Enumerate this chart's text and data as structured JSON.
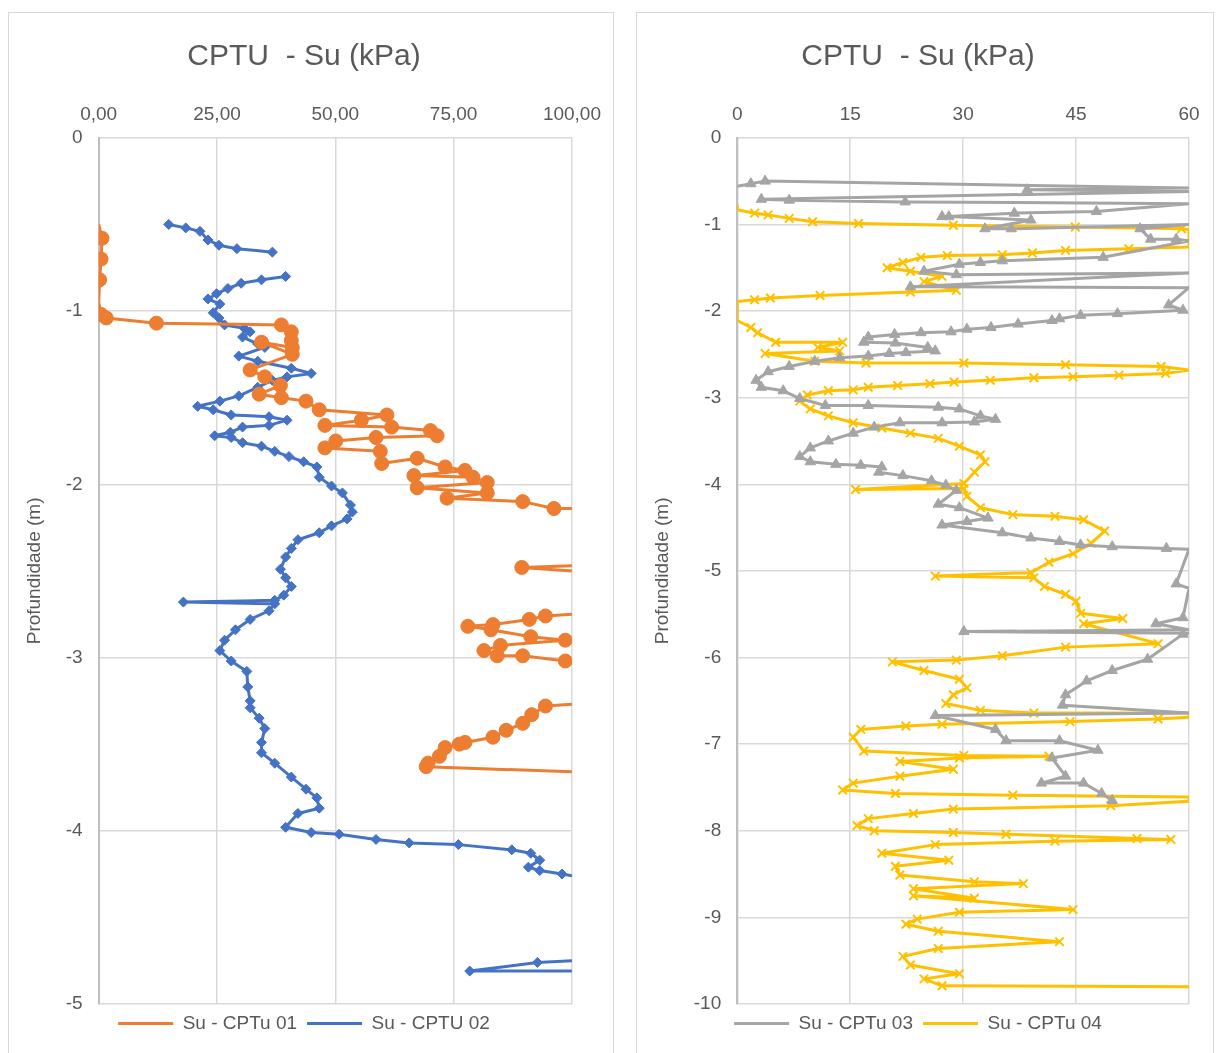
{
  "chart_data": [
    {
      "type": "line",
      "title": "CPTU  - Su (kPa)",
      "ylabel": "Profundidade (m)",
      "xlim": [
        0,
        100
      ],
      "xticks": [
        {
          "value": 0,
          "label": "0,00"
        },
        {
          "value": 25,
          "label": "25,00"
        },
        {
          "value": 50,
          "label": "50,00"
        },
        {
          "value": 75,
          "label": "75,00"
        },
        {
          "value": 100,
          "label": "100,00"
        }
      ],
      "ylim": [
        -5,
        0
      ],
      "yticks": [
        0,
        -1,
        -2,
        -3,
        -4,
        -5
      ],
      "grid": true,
      "legend": "bottom",
      "series": [
        {
          "name": "Su - CPTu 01",
          "color": "#ed7d31",
          "marker": "circle",
          "x": [
            0,
            0.7,
            0.5,
            0.2,
            0,
            0.5,
            1.6,
            12.2,
            38.6,
            40.7,
            40.7,
            40.9,
            34.4,
            40.9,
            32.0,
            35.1,
            38.4,
            33.9,
            38.6,
            43.8,
            46.6,
            60.9,
            55.5,
            47.8,
            61.9,
            70.1,
            71.5,
            58.6,
            50.1,
            47.8,
            59.5,
            59.8,
            67.3,
            73.2,
            77.4,
            66.6,
            79.1,
            82.1,
            67.3,
            82.1,
            73.6,
            89.6,
            96.2,
            100,
            null,
            100,
            89.4,
            100,
            null,
            100,
            94.4,
            91.0,
            83.3,
            78.0,
            82.9,
            91.3,
            98.6,
            84.9,
            81.4,
            84.2,
            89.6,
            98.6,
            100,
            null,
            100,
            94.4,
            91.5,
            89.6,
            86.1,
            83.3,
            77.4,
            76.2,
            73.2,
            72.0,
            69.6,
            69.2,
            100
          ],
          "values": [
            -0.5,
            -0.58,
            -0.7,
            -0.82,
            -0.95,
            -1.02,
            -1.04,
            -1.07,
            -1.08,
            -1.12,
            -1.17,
            -1.21,
            -1.18,
            -1.25,
            -1.34,
            -1.38,
            -1.43,
            -1.48,
            -1.5,
            -1.52,
            -1.57,
            -1.6,
            -1.63,
            -1.66,
            -1.67,
            -1.69,
            -1.72,
            -1.73,
            -1.75,
            -1.79,
            -1.81,
            -1.88,
            -1.85,
            -1.9,
            -1.92,
            -1.95,
            -1.96,
            -1.99,
            -2.02,
            -2.05,
            -2.08,
            -2.1,
            -2.14,
            -2.14,
            null,
            -2.47,
            -2.48,
            -2.5,
            null,
            -2.75,
            -2.76,
            -2.78,
            -2.81,
            -2.82,
            -2.84,
            -2.88,
            -2.9,
            -2.93,
            -2.96,
            -2.99,
            -2.99,
            -3.02,
            -3.03,
            null,
            -3.27,
            -3.28,
            -3.33,
            -3.38,
            -3.42,
            -3.46,
            -3.49,
            -3.5,
            -3.52,
            -3.57,
            -3.61,
            -3.63,
            -3.66
          ]
        },
        {
          "name": "Su - CPTU 02",
          "color": "#4472c4",
          "marker": "diamond",
          "x": [
            14.8,
            18.4,
            21.4,
            23.1,
            25.4,
            29.2,
            36.7,
            null,
            39.5,
            34.4,
            30.1,
            27.3,
            24.9,
            23.1,
            25.6,
            24.2,
            25.4,
            26.6,
            30.8,
            32.0,
            30.4,
            33.6,
            35.1,
            29.6,
            33.6,
            40.7,
            44.9,
            39.8,
            36.7,
            33.6,
            29.6,
            25.6,
            20.9,
            24.2,
            28.0,
            36.0,
            39.8,
            36.0,
            30.4,
            27.8,
            24.5,
            28.0,
            30.4,
            34.4,
            37.2,
            40.2,
            43.3,
            46.1,
            46.6,
            49.2,
            51.5,
            53.2,
            53.6,
            52.5,
            49.2,
            46.6,
            42.1,
            40.7,
            39.5,
            38.4,
            39.5,
            40.7,
            39.1,
            37.2,
            17.9,
            37.2,
            36.0,
            32.0,
            28.9,
            26.6,
            25.6,
            28.0,
            31.3,
            31.5,
            32.0,
            32.0,
            33.9,
            35.1,
            34.4,
            34.4,
            37.2,
            40.7,
            43.8,
            46.1,
            46.6,
            42.1,
            39.5,
            44.9,
            50.8,
            58.6,
            65.6,
            76.0,
            87.3,
            91.3,
            93.2,
            90.8,
            93.2,
            97.9,
            100,
            null,
            100,
            92.7,
            78.4,
            100
          ],
          "values": [
            -0.5,
            -0.52,
            -0.54,
            -0.59,
            -0.62,
            -0.64,
            -0.66,
            null,
            -0.8,
            -0.82,
            -0.84,
            -0.87,
            -0.9,
            -0.93,
            -0.96,
            -1.01,
            -1.04,
            -1.08,
            -1.1,
            -1.12,
            -1.15,
            -1.19,
            -1.21,
            -1.26,
            -1.29,
            -1.33,
            -1.36,
            -1.38,
            -1.4,
            -1.44,
            -1.49,
            -1.52,
            -1.55,
            -1.57,
            -1.6,
            -1.61,
            -1.63,
            -1.66,
            -1.67,
            -1.7,
            -1.72,
            -1.73,
            -1.76,
            -1.78,
            -1.81,
            -1.84,
            -1.87,
            -1.9,
            -1.96,
            -2.01,
            -2.05,
            -2.12,
            -2.16,
            -2.2,
            -2.24,
            -2.28,
            -2.32,
            -2.37,
            -2.42,
            -2.49,
            -2.54,
            -2.59,
            -2.64,
            -2.67,
            -2.68,
            -2.69,
            -2.73,
            -2.78,
            -2.84,
            -2.9,
            -2.96,
            -3.02,
            -3.08,
            -3.17,
            -3.25,
            -3.29,
            -3.35,
            -3.41,
            -3.49,
            -3.55,
            -3.61,
            -3.69,
            -3.76,
            -3.81,
            -3.87,
            -3.9,
            -3.98,
            -4.01,
            -4.02,
            -4.05,
            -4.07,
            -4.08,
            -4.11,
            -4.13,
            -4.17,
            -4.21,
            -4.23,
            -4.25,
            -4.26,
            null,
            -4.75,
            -4.76,
            -4.81,
            -4.81
          ]
        }
      ]
    },
    {
      "type": "line",
      "title": "CPTU  - Su (kPa)",
      "ylabel": "Profundidade (m)",
      "xlim": [
        0,
        60
      ],
      "xticks": [
        0,
        15,
        30,
        45,
        60
      ],
      "ylim": [
        -10,
        0
      ],
      "yticks": [
        0,
        -1,
        -2,
        -3,
        -4,
        -5,
        -6,
        -7,
        -8,
        -9,
        -10
      ],
      "grid": true,
      "legend": "bottom",
      "series": [
        {
          "name": "Su - CPTu 03",
          "color": "#a5a5a5",
          "marker": "triangle",
          "x": [
            0,
            1.8,
            3.7,
            60,
            38.5,
            60,
            3.2,
            6.9,
            22.3,
            60,
            47.7,
            36.8,
            27.2,
            28.1,
            39.0,
            32.9,
            36.4,
            60,
            53.5,
            54.9,
            58.3,
            60,
            48.6,
            35.2,
            32.3,
            29.5,
            24.8,
            29.1,
            60,
            23.0,
            60,
            57.3,
            59.2,
            50.5,
            45.6,
            42.8,
            41.8,
            37.3,
            33.7,
            30.5,
            28.4,
            24.4,
            20.9,
            17.4,
            16.8,
            21.0,
            25.3,
            26.3,
            22.4,
            20.2,
            17.4,
            13.6,
            10.3,
            6.9,
            4.1,
            2.5,
            3.2,
            6.1,
            8.3,
            11.7,
            17.4,
            26.7,
            29.5,
            32.3,
            34.3,
            31.5,
            27.2,
            21.6,
            18.2,
            15.4,
            12.1,
            9.7,
            8.3,
            9.7,
            13.1,
            16.4,
            19.2,
            18.8,
            22.0,
            25.8,
            27.7,
            29.1,
            26.7,
            29.5,
            33.3,
            30.5,
            27.2,
            35.2,
            39.0,
            42.8,
            45.6,
            49.8,
            57.0,
            60,
            58.3,
            60,
            59.2,
            55.6,
            60,
            30.1,
            60,
            59.2,
            54.5,
            49.8,
            46.4,
            43.6,
            43.2,
            60,
            26.3,
            34.3,
            35.7,
            42.8,
            47.9,
            41.8,
            43.6,
            40.4,
            46.0,
            48.4,
            49.8
          ],
          "values": [
            -0.56,
            -0.53,
            -0.5,
            -0.58,
            -0.6,
            -0.62,
            -0.71,
            -0.72,
            -0.74,
            -0.76,
            -0.85,
            -0.87,
            -0.91,
            -0.91,
            -0.95,
            -1.05,
            -1.05,
            -1.0,
            -1.05,
            -1.17,
            -1.17,
            -1.19,
            -1.38,
            -1.42,
            -1.44,
            -1.46,
            -1.54,
            -1.58,
            -1.56,
            -1.72,
            -1.73,
            -1.93,
            -1.99,
            -2.03,
            -2.05,
            -2.09,
            -2.11,
            -2.15,
            -2.19,
            -2.21,
            -2.24,
            -2.25,
            -2.27,
            -2.3,
            -2.36,
            -2.37,
            -2.42,
            -2.46,
            -2.48,
            -2.49,
            -2.52,
            -2.54,
            -2.58,
            -2.64,
            -2.7,
            -2.8,
            -2.88,
            -2.92,
            -3.01,
            -3.09,
            -3.09,
            -3.11,
            -3.13,
            -3.21,
            -3.25,
            -3.28,
            -3.29,
            -3.29,
            -3.34,
            -3.41,
            -3.5,
            -3.58,
            -3.68,
            -3.74,
            -3.77,
            -3.78,
            -3.8,
            -3.86,
            -3.9,
            -3.96,
            -4.01,
            -4.07,
            -4.23,
            -4.27,
            -4.39,
            -4.43,
            -4.47,
            -4.56,
            -4.62,
            -4.66,
            -4.7,
            -4.72,
            -4.74,
            -4.75,
            -5.15,
            -5.2,
            -5.54,
            -5.61,
            -5.68,
            -5.7,
            -5.72,
            -5.73,
            -6.02,
            -6.15,
            -6.27,
            -6.43,
            -6.55,
            -6.64,
            -6.67,
            -6.83,
            -6.96,
            -6.96,
            -7.07,
            -7.16,
            -7.37,
            -7.45,
            -7.45,
            -7.57,
            -7.65
          ]
        },
        {
          "name": "Su - CPTu 04",
          "color": "#ffc000",
          "marker": "cross",
          "x": [
            0,
            0,
            2.3,
            4.1,
            6.9,
            10.0,
            16.1,
            28.7,
            44.9,
            59.0,
            60,
            60,
            52.0,
            43.6,
            39.2,
            35.2,
            27.9,
            24.4,
            22.0,
            19.9,
            23.0,
            27.2,
            24.8,
            29.1,
            23.0,
            11.0,
            4.4,
            2.3,
            0,
            0,
            1.8,
            2.7,
            5.1,
            14.0,
            10.7,
            13.6,
            3.7,
            10.3,
            17.1,
            30.1,
            43.6,
            56.3,
            60,
            56.9,
            50.7,
            44.6,
            39.4,
            33.6,
            28.8,
            25.6,
            21.3,
            17.4,
            15.4,
            12.1,
            9.3,
            8.3,
            9.7,
            12.1,
            15.4,
            19.2,
            23.0,
            26.7,
            29.5,
            32.3,
            32.9,
            31.5,
            30.1,
            15.7,
            30.1,
            30.5,
            32.3,
            36.6,
            42.2,
            46.0,
            48.8,
            47.0,
            44.6,
            41.4,
            39.0,
            26.3,
            39.4,
            40.8,
            43.6,
            45.0,
            45.6,
            51.2,
            46.0,
            55.9,
            43.6,
            35.2,
            29.1,
            20.6,
            24.8,
            29.5,
            30.5,
            28.7,
            27.7,
            32.3,
            39.4,
            60,
            60,
            55.9,
            44.2,
            27.2,
            22.4,
            16.4,
            15.4,
            16.8,
            30.1,
            41.4,
            29.5,
            21.6,
            28.7,
            21.6,
            15.4,
            14.0,
            21.0,
            36.6,
            60,
            60,
            49.6,
            28.7,
            23.4,
            17.4,
            15.9,
            18.2,
            28.7,
            35.7,
            53.1,
            57.6,
            42.2,
            26.3,
            19.2,
            28.1,
            21.0,
            21.6,
            31.5,
            38.0,
            23.4,
            31.5,
            23.4,
            44.6,
            29.5,
            23.9,
            22.4,
            26.7,
            42.8,
            26.7,
            22.0,
            23.0,
            29.5,
            24.8,
            27.2,
            60
          ],
          "values": [
            -0.78,
            -0.83,
            -0.87,
            -0.89,
            -0.93,
            -0.97,
            -0.99,
            -1.01,
            -1.03,
            -1.05,
            -1.06,
            -1.26,
            -1.28,
            -1.3,
            -1.33,
            -1.35,
            -1.36,
            -1.38,
            -1.44,
            -1.5,
            -1.54,
            -1.6,
            -1.66,
            -1.76,
            -1.78,
            -1.82,
            -1.85,
            -1.87,
            -1.89,
            -2.11,
            -2.19,
            -2.25,
            -2.36,
            -2.36,
            -2.42,
            -2.46,
            -2.49,
            -2.58,
            -2.6,
            -2.6,
            -2.62,
            -2.64,
            -2.68,
            -2.72,
            -2.74,
            -2.76,
            -2.77,
            -2.8,
            -2.82,
            -2.84,
            -2.86,
            -2.88,
            -2.91,
            -2.92,
            -2.97,
            -3.04,
            -3.13,
            -3.21,
            -3.29,
            -3.35,
            -3.41,
            -3.47,
            -3.56,
            -3.66,
            -3.74,
            -3.86,
            -3.99,
            -4.06,
            -4.05,
            -4.14,
            -4.27,
            -4.35,
            -4.37,
            -4.41,
            -4.54,
            -4.68,
            -4.8,
            -4.9,
            -5.02,
            -5.06,
            -5.08,
            -5.18,
            -5.27,
            -5.35,
            -5.49,
            -5.55,
            -5.61,
            -5.84,
            -5.88,
            -5.98,
            -6.03,
            -6.05,
            -6.15,
            -6.25,
            -6.35,
            -6.43,
            -6.53,
            -6.61,
            -6.64,
            -6.64,
            -6.69,
            -6.71,
            -6.74,
            -6.77,
            -6.79,
            -6.83,
            -6.92,
            -7.08,
            -7.13,
            -7.14,
            -7.16,
            -7.2,
            -7.29,
            -7.37,
            -7.45,
            -7.53,
            -7.57,
            -7.59,
            -7.61,
            -7.66,
            -7.71,
            -7.75,
            -7.8,
            -7.86,
            -7.94,
            -8.0,
            -8.02,
            -8.04,
            -8.09,
            -8.1,
            -8.12,
            -8.16,
            -8.26,
            -8.34,
            -8.41,
            -8.51,
            -8.59,
            -8.61,
            -8.67,
            -8.78,
            -8.75,
            -8.91,
            -8.94,
            -9.02,
            -9.08,
            -9.16,
            -9.28,
            -9.36,
            -9.45,
            -9.55,
            -9.65,
            -9.71,
            -9.79,
            -9.8
          ]
        }
      ]
    }
  ]
}
